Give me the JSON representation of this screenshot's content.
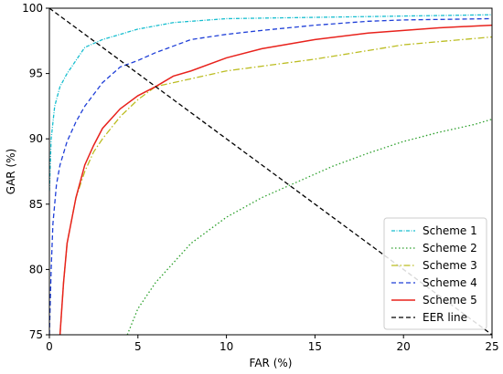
{
  "chart_data": {
    "type": "line",
    "xlabel": "FAR (%)",
    "ylabel": "GAR (%)",
    "xlim": [
      0,
      25
    ],
    "ylim": [
      75,
      100
    ],
    "x_ticks": [
      0,
      5,
      10,
      15,
      20,
      25
    ],
    "y_ticks": [
      75,
      80,
      85,
      90,
      95,
      100
    ],
    "legend_position": "bottom-right",
    "grid": false,
    "series": [
      {
        "name": "Scheme 1",
        "color": "#17becf",
        "style": "dashdot-dense",
        "x": [
          0,
          0.1,
          0.3,
          0.6,
          1.0,
          1.5,
          2.0,
          3.0,
          4.0,
          5.0,
          7.0,
          10.0,
          15.0,
          20.0,
          25.0
        ],
        "y": [
          86.0,
          90.0,
          92.5,
          94.0,
          95.0,
          96.0,
          97.0,
          97.6,
          98.0,
          98.4,
          98.9,
          99.2,
          99.3,
          99.4,
          99.5
        ]
      },
      {
        "name": "Scheme 2",
        "color": "#2ca02c",
        "style": "dotted",
        "x": [
          4.4,
          5.0,
          6.0,
          7.0,
          8.0,
          9.0,
          10.0,
          12.0,
          14.0,
          16.0,
          18.0,
          20.0,
          22.0,
          24.0,
          25.0
        ],
        "y": [
          75.0,
          77.0,
          79.0,
          80.5,
          82.0,
          83.0,
          84.0,
          85.5,
          86.7,
          87.9,
          88.9,
          89.8,
          90.5,
          91.1,
          91.5
        ]
      },
      {
        "name": "Scheme 3",
        "color": "#bcbd22",
        "style": "dashdot",
        "x": [
          0.6,
          0.8,
          1.0,
          1.5,
          2.0,
          2.5,
          3.0,
          4.0,
          5.0,
          6.0,
          8.0,
          10.0,
          15.0,
          20.0,
          25.0
        ],
        "y": [
          75.0,
          79.0,
          82.0,
          85.5,
          87.5,
          89.0,
          90.0,
          91.7,
          93.0,
          94.0,
          94.6,
          95.2,
          96.1,
          97.2,
          97.8
        ]
      },
      {
        "name": "Scheme 4",
        "color": "#1f3fd8",
        "style": "dashed",
        "x": [
          0,
          0.1,
          0.2,
          0.4,
          0.6,
          1.0,
          1.5,
          2.0,
          3.0,
          4.0,
          5.0,
          6.0,
          8.0,
          10.0,
          12.0,
          15.0,
          18.0,
          20.0,
          25.0
        ],
        "y": [
          75.0,
          80.0,
          83.5,
          86.5,
          88.0,
          89.8,
          91.3,
          92.5,
          94.3,
          95.5,
          96.0,
          96.6,
          97.6,
          98.0,
          98.3,
          98.7,
          99.0,
          99.1,
          99.2
        ]
      },
      {
        "name": "Scheme 5",
        "color": "#e8221c",
        "style": "solid",
        "x": [
          0.6,
          0.8,
          1.0,
          1.5,
          2.0,
          2.5,
          3.0,
          4.0,
          5.0,
          6.0,
          7.0,
          8.0,
          10.0,
          12.0,
          15.0,
          18.0,
          20.0,
          22.0,
          25.0
        ],
        "y": [
          75.0,
          79.0,
          82.0,
          85.5,
          88.0,
          89.5,
          90.8,
          92.3,
          93.3,
          94.0,
          94.8,
          95.2,
          96.2,
          96.9,
          97.6,
          98.1,
          98.3,
          98.5,
          98.7
        ]
      },
      {
        "name": "EER line",
        "color": "#000000",
        "style": "dashed",
        "x": [
          0,
          25
        ],
        "y": [
          100,
          75
        ]
      }
    ]
  }
}
